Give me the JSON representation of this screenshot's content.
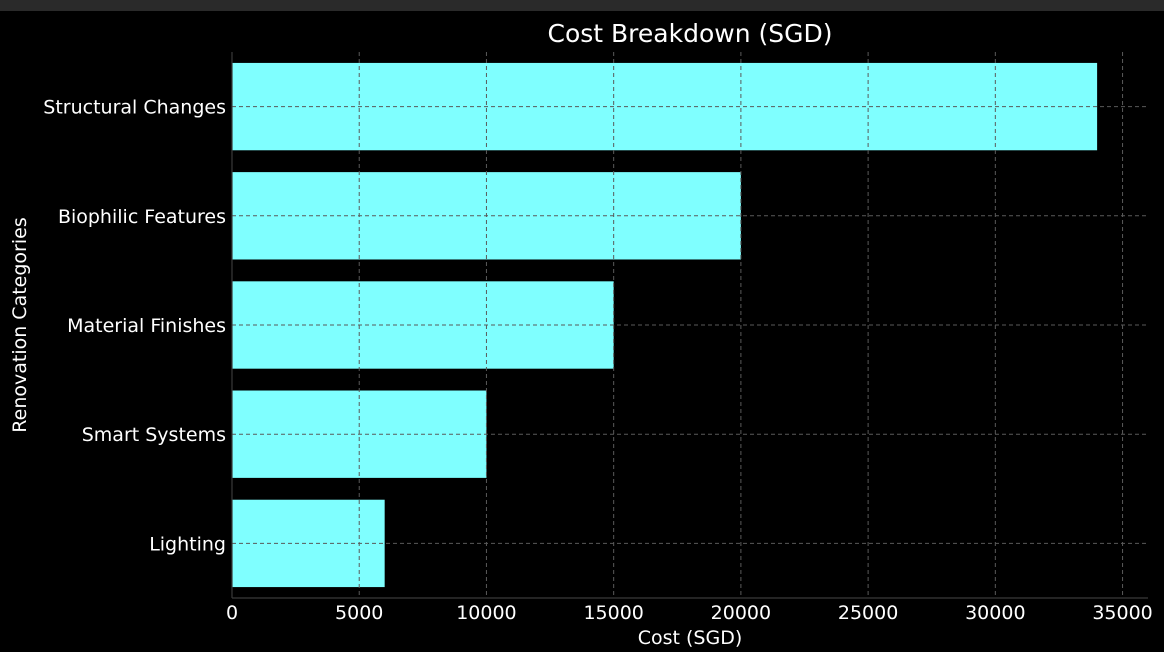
{
  "chart_data": {
    "type": "bar",
    "orientation": "horizontal",
    "title": "Cost Breakdown (SGD)",
    "xlabel": "Cost (SGD)",
    "ylabel": "Renovation Categories",
    "categories": [
      "Structural Changes",
      "Biophilic Features",
      "Material Finishes",
      "Smart Systems",
      "Lighting"
    ],
    "values": [
      34000,
      20000,
      15000,
      10000,
      6000
    ],
    "xlim": [
      0,
      36000
    ],
    "xticks": [
      0,
      5000,
      10000,
      15000,
      20000,
      25000,
      30000,
      35000
    ],
    "grid": true,
    "colors": {
      "background": "#000000",
      "bar": "#7fffff",
      "text": "#ffffff",
      "grid": "#5a5a5a"
    }
  }
}
